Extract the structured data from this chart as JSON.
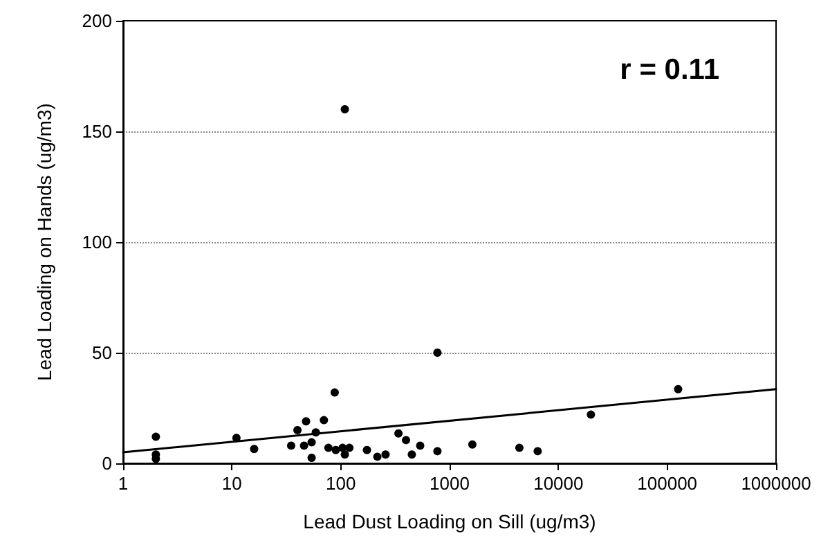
{
  "chart_data": {
    "type": "scatter",
    "xlabel": "Lead Dust Loading on Sill (ug/m3)",
    "ylabel": "Lead Loading on Hands (ug/m3)",
    "annotations": [
      "r = 0.11"
    ],
    "log": "x",
    "grid": "y",
    "xlim": [
      1,
      1000000
    ],
    "xticks": [
      1,
      10,
      100,
      1000,
      10000,
      100000,
      1000000
    ],
    "ylim": [
      0,
      200
    ],
    "yticks": [
      0,
      50,
      100,
      150,
      200
    ],
    "series": [
      {
        "color": "#000000",
        "marker": "circle",
        "x": [
          2,
          2,
          2,
          11,
          16,
          35,
          40,
          48,
          46,
          54,
          54,
          59,
          70,
          88,
          77,
          90,
          109,
          104,
          120,
          174,
          217,
          258,
          339,
          398,
          450,
          537,
          773,
          109,
          773,
          1620,
          4380,
          6450,
          19900,
          126000
        ],
        "values": [
          12,
          4,
          2,
          11.5,
          6.5,
          8,
          15,
          19,
          8,
          9.5,
          2.5,
          14,
          19.5,
          32,
          7,
          6,
          4,
          7,
          7,
          6,
          3,
          4,
          13.5,
          10.5,
          4,
          8,
          5.5,
          160,
          50,
          8.5,
          7,
          5.5,
          22,
          33.5
        ]
      },
      {
        "type": "line",
        "color": "#000000",
        "marker": "none",
        "x": [
          1,
          1000000
        ],
        "values": [
          5,
          33.5
        ]
      }
    ]
  }
}
